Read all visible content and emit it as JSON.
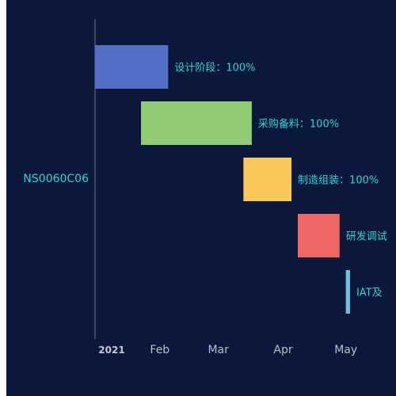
{
  "chart_data": {
    "type": "gantt",
    "category": "NS0060C06",
    "x_ticks": [
      "2021",
      "Feb",
      "Mar",
      "Apr",
      "May"
    ],
    "xlim": [
      "2021-01-01",
      "2021-05-25"
    ],
    "tasks": [
      {
        "name": "设计阶段",
        "start": "2021-01-01",
        "end": "2021-02-05",
        "label": "设计阶段：100%",
        "color": "#5470c6"
      },
      {
        "name": "采购备料",
        "start": "2021-01-23",
        "end": "2021-03-17",
        "label": "采购备料：100%",
        "color": "#91cc75"
      },
      {
        "name": "制造组装",
        "start": "2021-03-13",
        "end": "2021-04-05",
        "label": "制造组装：100%",
        "color": "#fac858"
      },
      {
        "name": "研发调试",
        "start": "2021-04-08",
        "end": "2021-04-28",
        "label": "研发调试",
        "color": "#ee6666"
      },
      {
        "name": "IAT及",
        "start": "2021-05-01",
        "end": "2021-05-03",
        "label": "IAT及",
        "color": "#73c0de"
      }
    ],
    "label_color": "#33d6d6",
    "category_color": "#33d6d6",
    "axis_color": "#6e7384",
    "background": "#0b173b"
  }
}
